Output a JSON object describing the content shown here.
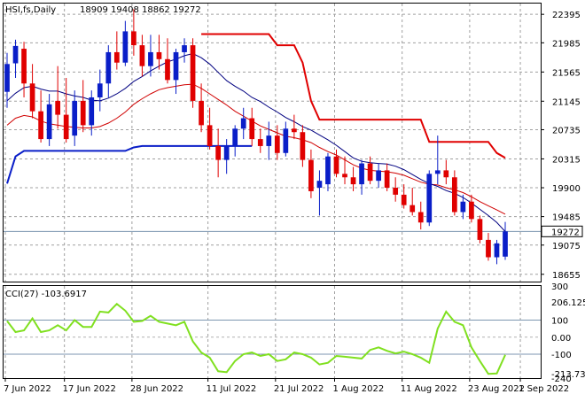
{
  "header": {
    "symbol": "HSI,fs,Daily",
    "ohlc": "18909 19408 18862 19272"
  },
  "price_panel": {
    "ticks": [
      "22395",
      "21985",
      "21565",
      "21145",
      "20735",
      "20315",
      "19900",
      "19485",
      "19075",
      "18655"
    ],
    "current_label": "19272"
  },
  "cci_panel": {
    "title": "CCI(27) -103.6917",
    "ticks": [
      "300",
      "206.1256",
      "100",
      "0.00",
      "-100",
      "-213.739",
      "-240"
    ],
    "line_color": "#80e020"
  },
  "dates": [
    "7 Jun 2022",
    "17 Jun 2022",
    "28 Jun 2022",
    "11 Jul 2022",
    "21 Jul 2022",
    "1 Aug 2022",
    "11 Aug 2022",
    "23 Aug 2022",
    "1 Sep 2022"
  ],
  "colors": {
    "up": "#0a1ec8",
    "down": "#e00000",
    "fast_ma": "#000080",
    "slow_ma": "#d00000",
    "stop": "#e00000",
    "support": "#0a1ec8"
  },
  "chart_data": [
    {
      "type": "candlestick",
      "title": "HSI,fs,Daily",
      "ylim": [
        18550,
        22550
      ],
      "series": [
        {
          "name": "HSI",
          "candles": [
            [
              21280,
              21840,
              21050,
              21680
            ],
            [
              21690,
              22030,
              21480,
              21940
            ],
            [
              21900,
              22000,
              21200,
              21400
            ],
            [
              21400,
              21680,
              20900,
              21000
            ],
            [
              21000,
              21300,
              20550,
              20600
            ],
            [
              20600,
              21250,
              20500,
              21100
            ],
            [
              21150,
              21650,
              20750,
              20950
            ],
            [
              20950,
              21480,
              20550,
              20600
            ],
            [
              20650,
              21300,
              20500,
              21150
            ],
            [
              21150,
              21450,
              20700,
              20800
            ],
            [
              20800,
              21300,
              20650,
              21200
            ],
            [
              21200,
              21600,
              21000,
              21400
            ],
            [
              21400,
              21950,
              21200,
              21850
            ],
            [
              21850,
              22150,
              21600,
              21700
            ],
            [
              21700,
              22300,
              21650,
              22150
            ],
            [
              22150,
              22470,
              21800,
              21950
            ],
            [
              21950,
              22100,
              21500,
              21650
            ],
            [
              21650,
              22100,
              21500,
              21850
            ],
            [
              21850,
              22100,
              21600,
              21750
            ],
            [
              21750,
              22050,
              21400,
              21450
            ],
            [
              21450,
              21900,
              21250,
              21850
            ],
            [
              21850,
              22050,
              21700,
              21950
            ],
            [
              21950,
              22050,
              21050,
              21150
            ],
            [
              21150,
              21400,
              20700,
              20800
            ],
            [
              20800,
              21050,
              20450,
              20500
            ],
            [
              20500,
              20750,
              20050,
              20300
            ],
            [
              20300,
              20600,
              20100,
              20500
            ],
            [
              20500,
              20800,
              20350,
              20750
            ],
            [
              20750,
              21050,
              20600,
              20900
            ],
            [
              20900,
              21050,
              20500,
              20600
            ],
            [
              20600,
              20750,
              20400,
              20500
            ],
            [
              20500,
              20850,
              20300,
              20650
            ],
            [
              20650,
              20800,
              20300,
              20400
            ],
            [
              20400,
              20850,
              20350,
              20750
            ],
            [
              20750,
              20950,
              20600,
              20700
            ],
            [
              20700,
              20800,
              20200,
              20300
            ],
            [
              20300,
              20450,
              19750,
              19850
            ],
            [
              19900,
              20150,
              19500,
              20000
            ],
            [
              19950,
              20400,
              19850,
              20350
            ],
            [
              20350,
              20450,
              20050,
              20100
            ],
            [
              20100,
              20350,
              19950,
              20050
            ],
            [
              20050,
              20200,
              19850,
              19950
            ],
            [
              19950,
              20300,
              19800,
              20250
            ],
            [
              20250,
              20350,
              19950,
              20000
            ],
            [
              20000,
              20250,
              19900,
              20150
            ],
            [
              20150,
              20250,
              19850,
              19900
            ],
            [
              19900,
              20050,
              19700,
              19800
            ],
            [
              19800,
              19950,
              19600,
              19650
            ],
            [
              19650,
              19900,
              19500,
              19550
            ],
            [
              19550,
              19700,
              19300,
              19400
            ],
            [
              19400,
              20150,
              19350,
              20100
            ],
            [
              20100,
              20650,
              19950,
              20150
            ],
            [
              20150,
              20300,
              19950,
              20050
            ],
            [
              20050,
              20150,
              19500,
              19550
            ],
            [
              19550,
              19800,
              19450,
              19700
            ],
            [
              19700,
              19800,
              19400,
              19450
            ],
            [
              19450,
              19500,
              19100,
              19150
            ],
            [
              19150,
              19250,
              18850,
              18900
            ],
            [
              18900,
              19150,
              18800,
              19100
            ],
            [
              18909,
              19408,
              18862,
              19272
            ]
          ]
        },
        {
          "name": "fast_ma",
          "values": [
            21150,
            21260,
            21340,
            21360,
            21320,
            21290,
            21290,
            21250,
            21220,
            21200,
            21160,
            21150,
            21190,
            21250,
            21330,
            21430,
            21500,
            21580,
            21650,
            21710,
            21750,
            21800,
            21830,
            21770,
            21680,
            21560,
            21440,
            21360,
            21290,
            21200,
            21140,
            21060,
            20990,
            20910,
            20850,
            20780,
            20730,
            20660,
            20590,
            20510,
            20420,
            20330,
            20280,
            20260,
            20250,
            20240,
            20210,
            20160,
            20090,
            20020,
            19960,
            19920,
            19860,
            19820,
            19760,
            19680,
            19590,
            19500,
            19400,
            19270
          ]
        },
        {
          "name": "slow_ma",
          "values": [
            20800,
            20900,
            20940,
            20920,
            20860,
            20820,
            20800,
            20780,
            20770,
            20760,
            20760,
            20780,
            20830,
            20900,
            20990,
            21100,
            21180,
            21250,
            21310,
            21340,
            21360,
            21380,
            21390,
            21330,
            21250,
            21170,
            21090,
            21000,
            20930,
            20860,
            20790,
            20740,
            20690,
            20640,
            20620,
            20590,
            20550,
            20480,
            20420,
            20370,
            20300,
            20230,
            20180,
            20150,
            20140,
            20130,
            20110,
            20080,
            20030,
            19980,
            19950,
            19940,
            19900,
            19870,
            19830,
            19770,
            19700,
            19640,
            19580,
            19520
          ]
        },
        {
          "name": "stop_upper",
          "values": [
            null,
            null,
            null,
            null,
            null,
            null,
            null,
            null,
            null,
            null,
            null,
            null,
            null,
            null,
            null,
            null,
            null,
            null,
            null,
            null,
            null,
            null,
            null,
            22110,
            22110,
            22110,
            22110,
            22110,
            22110,
            22110,
            22110,
            22110,
            21950,
            21950,
            21950,
            21700,
            21150,
            20880,
            20880,
            20880,
            20880,
            20880,
            20880,
            20880,
            20880,
            20880,
            20880,
            20880,
            20880,
            20880,
            20560,
            20560,
            20560,
            20560,
            20560,
            20560,
            20560,
            20560,
            20400,
            20330
          ]
        },
        {
          "name": "support_lower",
          "values": [
            19960,
            20350,
            20430,
            20430,
            20430,
            20430,
            20430,
            20430,
            20430,
            20430,
            20430,
            20430,
            20430,
            20430,
            20430,
            20480,
            20500,
            20500,
            20500,
            20500,
            20500,
            20500,
            20500,
            20500,
            20500,
            20500,
            20500,
            20500,
            20500,
            20500,
            null,
            null,
            null,
            null,
            null,
            null,
            null,
            null,
            null,
            null,
            null,
            null,
            null,
            null,
            null,
            null,
            null,
            null,
            null,
            null,
            null,
            null,
            null,
            null,
            null,
            null,
            null,
            null,
            null,
            null
          ]
        }
      ]
    },
    {
      "type": "line",
      "title": "CCI(27) -103.6917",
      "ylim": [
        -240,
        300
      ],
      "series": [
        {
          "name": "CCI",
          "values": [
            95,
            30,
            40,
            110,
            30,
            40,
            70,
            40,
            100,
            60,
            60,
            150,
            145,
            195,
            155,
            90,
            95,
            125,
            90,
            80,
            70,
            90,
            -25,
            -90,
            -120,
            -200,
            -205,
            -140,
            -100,
            -90,
            -110,
            -100,
            -140,
            -130,
            -90,
            -100,
            -120,
            -160,
            -150,
            -110,
            -115,
            -120,
            -125,
            -75,
            -60,
            -80,
            -95,
            -85,
            -100,
            -120,
            -150,
            50,
            150,
            90,
            70,
            -60,
            -140,
            -215,
            -213,
            -104
          ]
        }
      ]
    }
  ]
}
